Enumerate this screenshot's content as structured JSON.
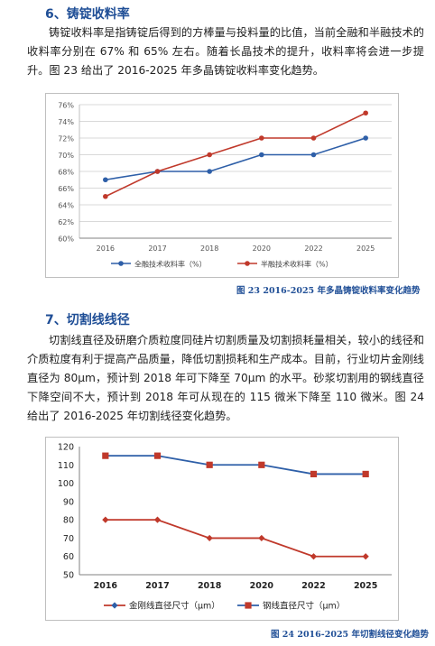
{
  "section6": {
    "title": "6、铸锭收料率",
    "paragraph": "铸锭收料率是指铸锭后得到的方棒量与投料量的比值，当前全融和半融技术的收料率分别在 67% 和 65% 左右。随着长晶技术的提升，收料率将会进一步提升。图 23 给出了 2016-2025 年多晶铸锭收料率变化趋势。",
    "caption": "图 23 2016-2025 年多晶铸锭收料率变化趋势"
  },
  "section7": {
    "title": "7、切割线线径",
    "paragraph": "切割线直径及研磨介质粒度同硅片切割质量及切割损耗量相关，较小的线径和介质粒度有利于提高产品质量，降低切割损耗和生产成本。目前，行业切片金刚线直径为 80μm，预计到 2018 年可下降至 70μm 的水平。砂浆切割用的钢线直径下降空间不大，预计到 2018 年可从现在的 115 微米下降至 110 微米。图 24 给出了 2016-2025 年切割线径变化趋势。",
    "caption": "图 24 2016-2025 年切割线径变化趋势"
  },
  "chart_data": [
    {
      "type": "line",
      "title": "",
      "categories": [
        "2016",
        "2017",
        "2018",
        "2020",
        "2022",
        "2025"
      ],
      "y_ticks": [
        "60%",
        "62%",
        "64%",
        "66%",
        "68%",
        "70%",
        "72%",
        "74%",
        "76%"
      ],
      "ylim": [
        60,
        76
      ],
      "grid": true,
      "legend_position": "bottom",
      "series": [
        {
          "name": "全融技术收料率（%）",
          "values": [
            67,
            68,
            68,
            70,
            70,
            72
          ],
          "color": "#2e5fa8",
          "marker": "circle"
        },
        {
          "name": "半融技术收料率（%）",
          "values": [
            65,
            68,
            70,
            72,
            72,
            75
          ],
          "color": "#c0392b",
          "marker": "circle"
        }
      ]
    },
    {
      "type": "line",
      "title": "",
      "categories": [
        "2016",
        "2017",
        "2018",
        "2020",
        "2022",
        "2025"
      ],
      "y_ticks": [
        "50",
        "60",
        "70",
        "80",
        "90",
        "100",
        "110",
        "120"
      ],
      "ylim": [
        50,
        120
      ],
      "grid": false,
      "legend_position": "bottom",
      "series": [
        {
          "name": "金刚线直径尺寸（μm）",
          "values": [
            80,
            80,
            70,
            70,
            60,
            60
          ],
          "color": "#c0392b",
          "marker": "diamond",
          "legend_marker_color": "#2e5fa8"
        },
        {
          "name": "钢线直径尺寸（μm）",
          "values": [
            115,
            115,
            110,
            110,
            105,
            105
          ],
          "color": "#2e5fa8",
          "marker": "square",
          "marker_color": "#c0392b"
        }
      ]
    }
  ]
}
